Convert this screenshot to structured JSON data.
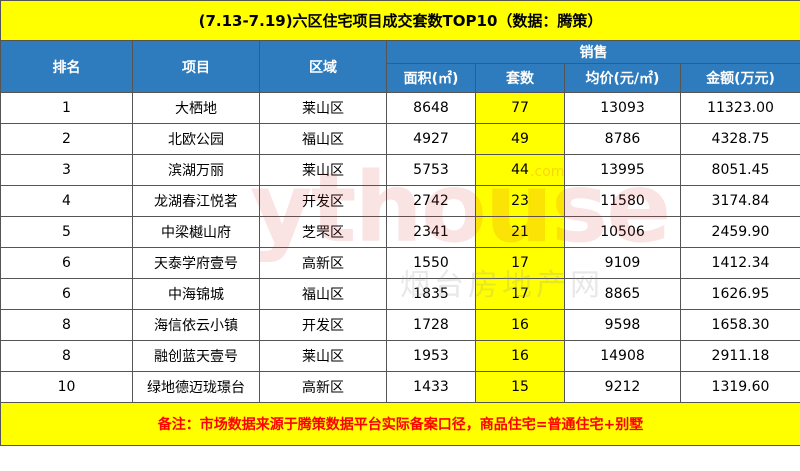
{
  "title": "(7.13-7.19)六区住宅项目成交套数TOP10（数据：腾策）",
  "headers": {
    "rank": "排名",
    "project": "项目",
    "district": "区域",
    "sales": "销售",
    "area": "面积(㎡)",
    "units": "套数",
    "avg_price": "均价(元/㎡)",
    "amount": "金额(万元)"
  },
  "rows": [
    {
      "rank": "1",
      "project": "大栖地",
      "district": "莱山区",
      "area": "8648",
      "units": "77",
      "avg_price": "13093",
      "amount": "11323.00"
    },
    {
      "rank": "2",
      "project": "北欧公园",
      "district": "福山区",
      "area": "4927",
      "units": "49",
      "avg_price": "8786",
      "amount": "4328.75"
    },
    {
      "rank": "3",
      "project": "滨湖万丽",
      "district": "莱山区",
      "area": "5753",
      "units": "44",
      "avg_price": "13995",
      "amount": "8051.45"
    },
    {
      "rank": "4",
      "project": "龙湖春江悦茗",
      "district": "开发区",
      "area": "2742",
      "units": "23",
      "avg_price": "11580",
      "amount": "3174.84"
    },
    {
      "rank": "5",
      "project": "中梁樾山府",
      "district": "芝罘区",
      "area": "2341",
      "units": "21",
      "avg_price": "10506",
      "amount": "2459.90"
    },
    {
      "rank": "6",
      "project": "天泰学府壹号",
      "district": "高新区",
      "area": "1550",
      "units": "17",
      "avg_price": "9109",
      "amount": "1412.34"
    },
    {
      "rank": "6",
      "project": "中海锦城",
      "district": "福山区",
      "area": "1835",
      "units": "17",
      "avg_price": "8865",
      "amount": "1626.95"
    },
    {
      "rank": "8",
      "project": "海信依云小镇",
      "district": "开发区",
      "area": "1728",
      "units": "16",
      "avg_price": "9598",
      "amount": "1658.30"
    },
    {
      "rank": "8",
      "project": "融创蓝天壹号",
      "district": "莱山区",
      "area": "1953",
      "units": "16",
      "avg_price": "14908",
      "amount": "2911.18"
    },
    {
      "rank": "10",
      "project": "绿地德迈珑璟台",
      "district": "高新区",
      "area": "1433",
      "units": "15",
      "avg_price": "9212",
      "amount": "1319.60"
    }
  ],
  "footer": "备注：市场数据来源于腾策数据平台实际备案口径，商品住宅=普通住宅+别墅",
  "watermark": {
    "text": "ythouse",
    "domain": ".com",
    "cn": "烟台房地产网"
  },
  "colors": {
    "title_bg": "#ffff00",
    "header_bg": "#2e7bbd",
    "highlight": "#ffff00",
    "footer_text": "#ff0000"
  }
}
